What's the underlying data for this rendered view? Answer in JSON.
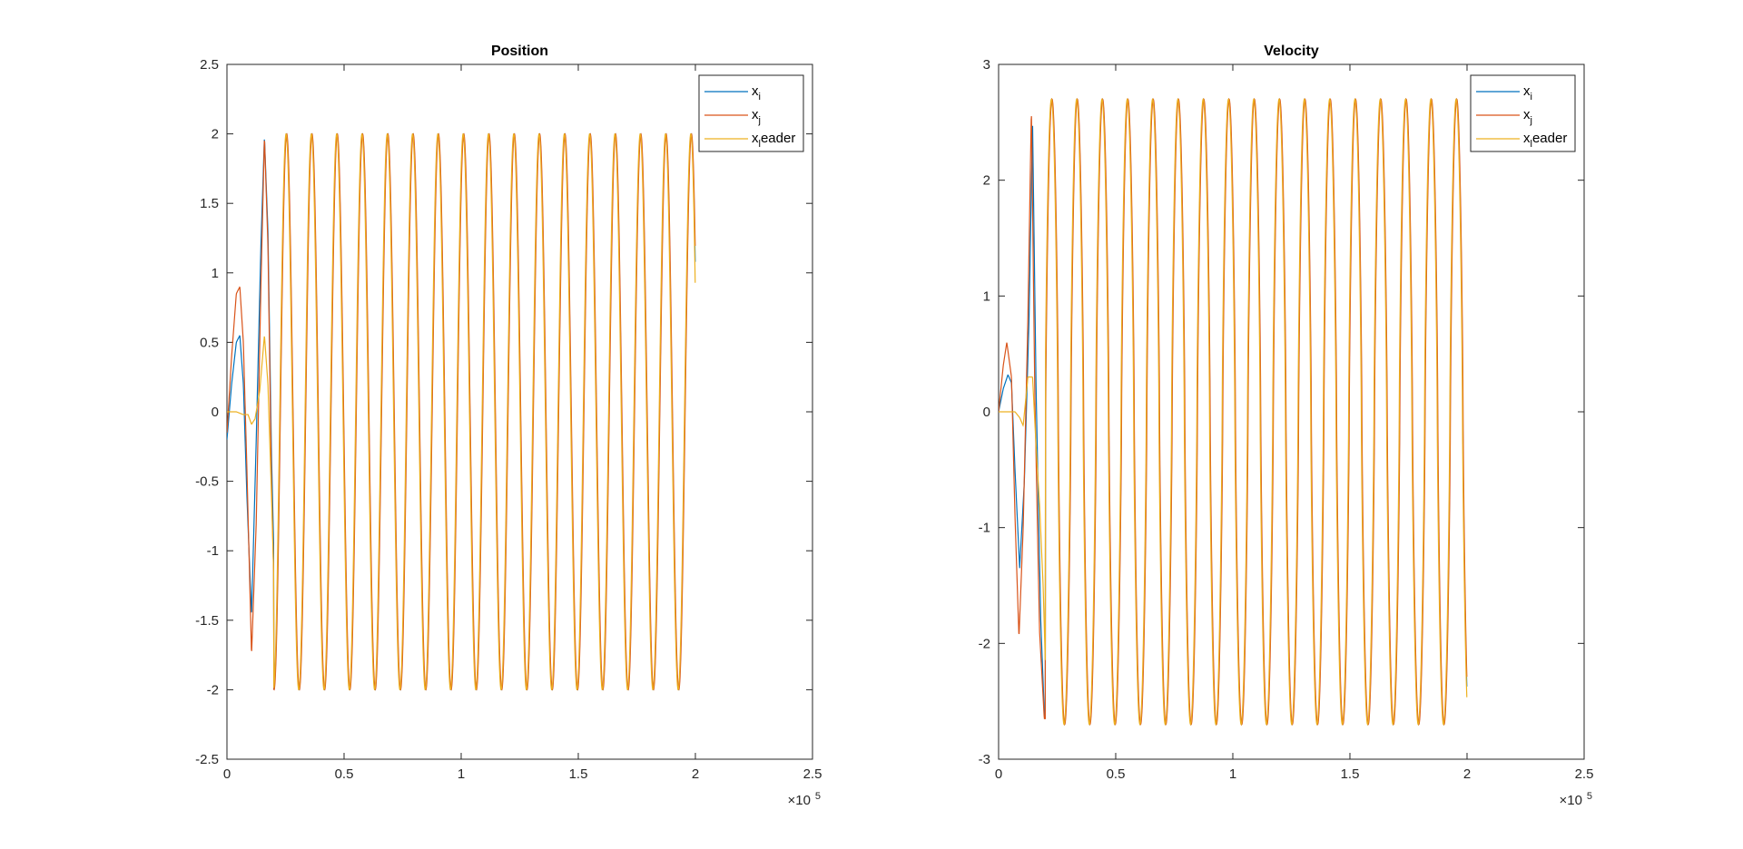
{
  "chart_data": [
    {
      "type": "line",
      "title": "Position",
      "xlabel": "",
      "ylabel": "",
      "xlim": [
        0,
        250000
      ],
      "ylim": [
        -2.5,
        2.5
      ],
      "x_exponent_label": "×10",
      "x_exponent_power": "5",
      "x_ticks": [
        0,
        50000,
        100000,
        150000,
        200000,
        250000
      ],
      "x_tick_labels": [
        "0",
        "0.5",
        "1",
        "1.5",
        "2",
        "2.5"
      ],
      "y_ticks": [
        -2.5,
        -2,
        -1.5,
        -1,
        -0.5,
        0,
        0.5,
        1,
        1.5,
        2,
        2.5
      ],
      "y_tick_labels": [
        "-2.5",
        "-2",
        "-1.5",
        "-1",
        "-0.5",
        "0",
        "0.5",
        "1",
        "1.5",
        "2",
        "2.5"
      ],
      "grid": false,
      "legend_position": "top-right",
      "legend": [
        {
          "base": "x",
          "sub": "i",
          "rest": "",
          "color": "#0072BD"
        },
        {
          "base": "x",
          "sub": "j",
          "rest": "",
          "color": "#D95319"
        },
        {
          "base": "x",
          "sub": "l",
          "rest": "eader",
          "color": "#EDB120"
        }
      ],
      "signal": {
        "kind": "position",
        "amplitude": 2,
        "period": 10800,
        "settle_x": 20000,
        "end_x": 200000
      },
      "series": [
        {
          "legend_index": 0,
          "transient": [
            [
              0,
              -0.2
            ],
            [
              2000,
              0.2
            ],
            [
              4000,
              0.5
            ],
            [
              5500,
              0.55
            ],
            [
              7000,
              0.2
            ],
            [
              8500,
              -0.6
            ],
            [
              10500,
              -1.47
            ],
            [
              12500,
              -0.2
            ],
            [
              14500,
              1.2
            ],
            [
              16000,
              1.98
            ],
            [
              17500,
              1.3
            ],
            [
              19000,
              -0.3
            ],
            [
              20000,
              -1.0
            ]
          ]
        },
        {
          "legend_index": 1,
          "transient": [
            [
              0,
              -0.15
            ],
            [
              2000,
              0.4
            ],
            [
              4000,
              0.85
            ],
            [
              5500,
              0.9
            ],
            [
              7000,
              0.5
            ],
            [
              8500,
              -0.4
            ],
            [
              10500,
              -1.75
            ],
            [
              12500,
              -0.8
            ],
            [
              14500,
              0.9
            ],
            [
              16000,
              1.98
            ],
            [
              17500,
              1.2
            ],
            [
              19000,
              -0.5
            ],
            [
              20000,
              -1.2
            ]
          ]
        },
        {
          "legend_index": 2,
          "transient": [
            [
              0,
              0
            ],
            [
              4000,
              0.0
            ],
            [
              7000,
              -0.02
            ],
            [
              9000,
              -0.02
            ],
            [
              10500,
              -0.09
            ],
            [
              12000,
              -0.05
            ],
            [
              14000,
              0.15
            ],
            [
              16000,
              0.55
            ],
            [
              17500,
              0.2
            ],
            [
              19000,
              -0.6
            ],
            [
              20000,
              -1.2
            ]
          ]
        }
      ]
    },
    {
      "type": "line",
      "title": "Velocity",
      "xlabel": "",
      "ylabel": "",
      "xlim": [
        0,
        250000
      ],
      "ylim": [
        -3,
        3
      ],
      "x_exponent_label": "×10",
      "x_exponent_power": "5",
      "x_ticks": [
        0,
        50000,
        100000,
        150000,
        200000,
        250000
      ],
      "x_tick_labels": [
        "0",
        "0.5",
        "1",
        "1.5",
        "2",
        "2.5"
      ],
      "y_ticks": [
        -3,
        -2,
        -1,
        0,
        1,
        2,
        3
      ],
      "y_tick_labels": [
        "-3",
        "-2",
        "-1",
        "0",
        "1",
        "2",
        "3"
      ],
      "grid": false,
      "legend_position": "top-right",
      "legend": [
        {
          "base": "x",
          "sub": "i",
          "rest": "",
          "color": "#0072BD"
        },
        {
          "base": "x",
          "sub": "j",
          "rest": "",
          "color": "#D95319"
        },
        {
          "base": "x",
          "sub": "l",
          "rest": "eader",
          "color": "#EDB120"
        }
      ],
      "signal": {
        "kind": "velocity",
        "amplitude": 2.7,
        "period": 10800,
        "settle_x": 20000,
        "end_x": 200000
      },
      "series": [
        {
          "legend_index": 0,
          "transient": [
            [
              0,
              0
            ],
            [
              2000,
              0.2
            ],
            [
              4000,
              0.32
            ],
            [
              5500,
              0.25
            ],
            [
              7000,
              -0.5
            ],
            [
              9000,
              -1.35
            ],
            [
              11000,
              -0.6
            ],
            [
              13000,
              0.8
            ],
            [
              14500,
              2.5
            ],
            [
              16000,
              0.2
            ],
            [
              18000,
              -1.8
            ],
            [
              19500,
              -2.6
            ],
            [
              20000,
              -2.65
            ]
          ]
        },
        {
          "legend_index": 1,
          "transient": [
            [
              0,
              0
            ],
            [
              2000,
              0.4
            ],
            [
              3500,
              0.6
            ],
            [
              5500,
              0.3
            ],
            [
              7000,
              -0.9
            ],
            [
              8700,
              -1.95
            ],
            [
              10500,
              -1.0
            ],
            [
              12500,
              0.8
            ],
            [
              14000,
              2.62
            ],
            [
              15500,
              0.1
            ],
            [
              17500,
              -1.9
            ],
            [
              19500,
              -2.65
            ],
            [
              20000,
              -2.65
            ]
          ]
        },
        {
          "legend_index": 2,
          "transient": [
            [
              0,
              0
            ],
            [
              4000,
              0.0
            ],
            [
              7000,
              0.0
            ],
            [
              9000,
              -0.05
            ],
            [
              10500,
              -0.12
            ],
            [
              12500,
              0.3
            ],
            [
              14500,
              0.3
            ],
            [
              16000,
              -0.3
            ],
            [
              17500,
              -0.8
            ],
            [
              19000,
              -1.5
            ],
            [
              20000,
              -2.2
            ]
          ]
        }
      ]
    }
  ]
}
